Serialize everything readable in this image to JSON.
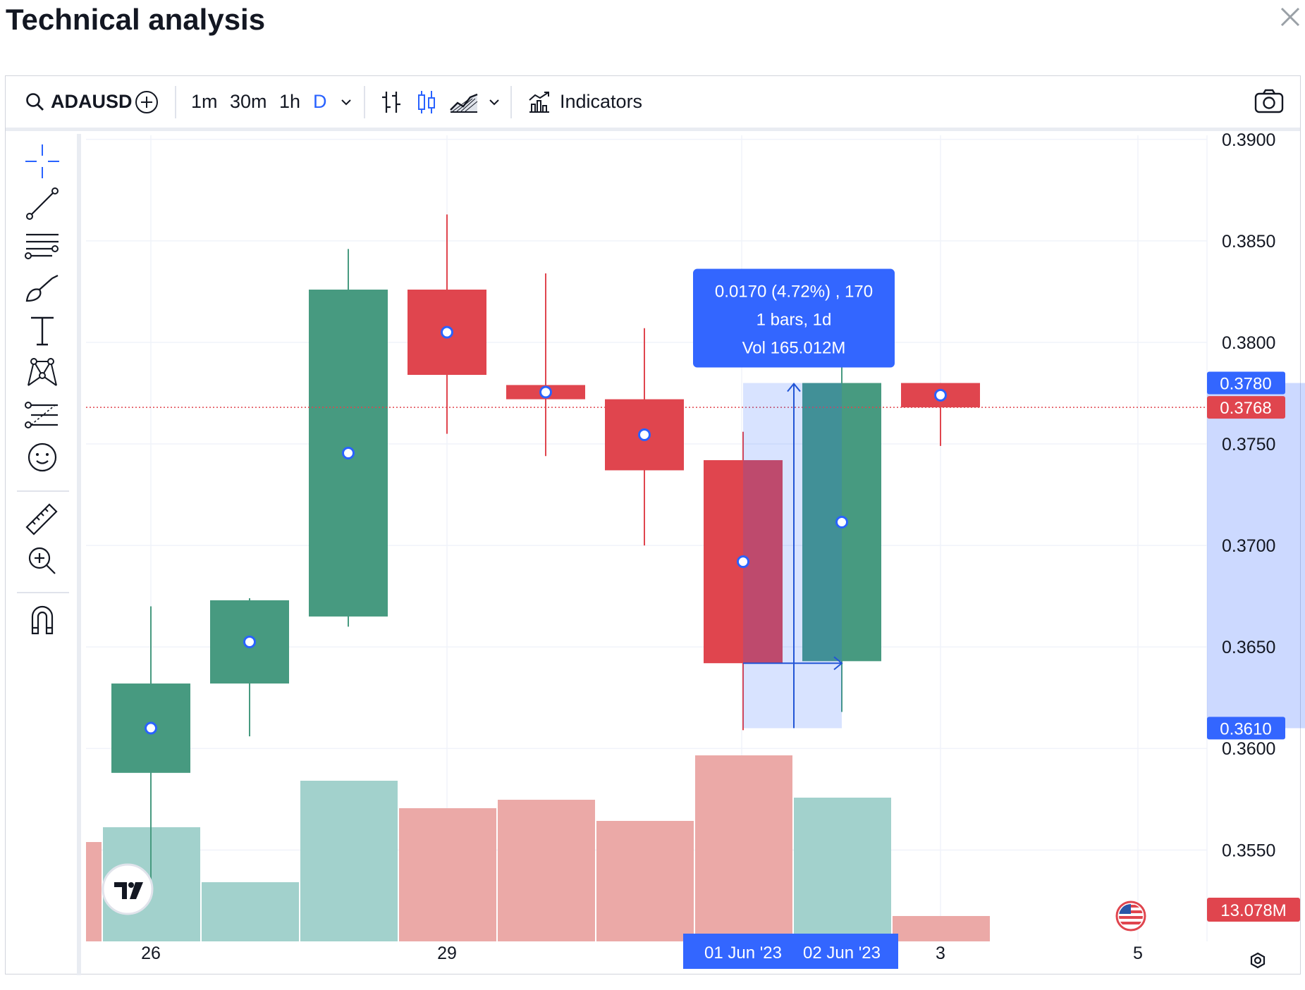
{
  "page": {
    "title": "Technical analysis"
  },
  "toolbar": {
    "symbol": "ADAUSD",
    "intervals": [
      {
        "label": "1m",
        "active": false
      },
      {
        "label": "30m",
        "active": false
      },
      {
        "label": "1h",
        "active": false
      },
      {
        "label": "D",
        "active": true
      }
    ],
    "indicators_label": "Indicators"
  },
  "colors": {
    "up": "#479a80",
    "down": "#e0454e",
    "accent": "#2962ff",
    "up_volume": "#a2d1cc",
    "down_volume": "#eba9a7"
  },
  "chart_data": {
    "type": "candlestick",
    "title": "",
    "xlabel": "",
    "ylabel": "",
    "y_ticks": [
      "0.3900",
      "0.3850",
      "0.3800",
      "0.3750",
      "0.3700",
      "0.3650",
      "0.3600",
      "0.3550"
    ],
    "ylim": [
      0.3505,
      0.3902
    ],
    "x_ticks": [
      {
        "label": "26",
        "index": 0
      },
      {
        "label": "29",
        "index": 3
      },
      {
        "label": "3",
        "index": 8
      },
      {
        "label": "5",
        "index": 10
      }
    ],
    "candles": [
      {
        "open": 0.3588,
        "high": 0.367,
        "low": 0.3534,
        "close": 0.3632,
        "volume_ratio": 0.54,
        "direction": "up"
      },
      {
        "open": 0.3632,
        "high": 0.3674,
        "low": 0.3606,
        "close": 0.3673,
        "volume_ratio": 0.28,
        "direction": "up"
      },
      {
        "open": 0.3665,
        "high": 0.3846,
        "low": 0.366,
        "close": 0.3826,
        "volume_ratio": 0.76,
        "direction": "up"
      },
      {
        "open": 0.3826,
        "high": 0.3863,
        "low": 0.3755,
        "close": 0.3784,
        "volume_ratio": 0.63,
        "direction": "down"
      },
      {
        "open": 0.3779,
        "high": 0.3834,
        "low": 0.3744,
        "close": 0.3772,
        "volume_ratio": 0.67,
        "direction": "down"
      },
      {
        "open": 0.3772,
        "high": 0.3807,
        "low": 0.37,
        "close": 0.3737,
        "volume_ratio": 0.57,
        "direction": "down"
      },
      {
        "open": 0.3742,
        "high": 0.3756,
        "low": 0.3609,
        "close": 0.3642,
        "volume_ratio": 0.88,
        "direction": "down"
      },
      {
        "open": 0.3643,
        "high": 0.379,
        "low": 0.3618,
        "close": 0.378,
        "volume_ratio": 0.68,
        "direction": "up"
      },
      {
        "open": 0.378,
        "high": 0.378,
        "low": 0.3749,
        "close": 0.3768,
        "volume_ratio": 0.12,
        "direction": "down"
      }
    ],
    "partial_volume_left": {
      "ratio": 0.47,
      "direction": "down"
    },
    "current_price": {
      "value": 0.3768,
      "label": "0.3768"
    },
    "volume_label": "13.078M",
    "measure": {
      "from_index": 6,
      "to_index": 7,
      "low": 0.361,
      "high": 0.378,
      "high_label": "0.3780",
      "low_label": "0.3610",
      "tooltip": [
        "0.0170 (4.72%) , 170",
        "1 bars, 1d",
        "Vol 165.012M"
      ],
      "date_labels": [
        "01 Jun '23",
        "02 Jun '23"
      ]
    }
  }
}
